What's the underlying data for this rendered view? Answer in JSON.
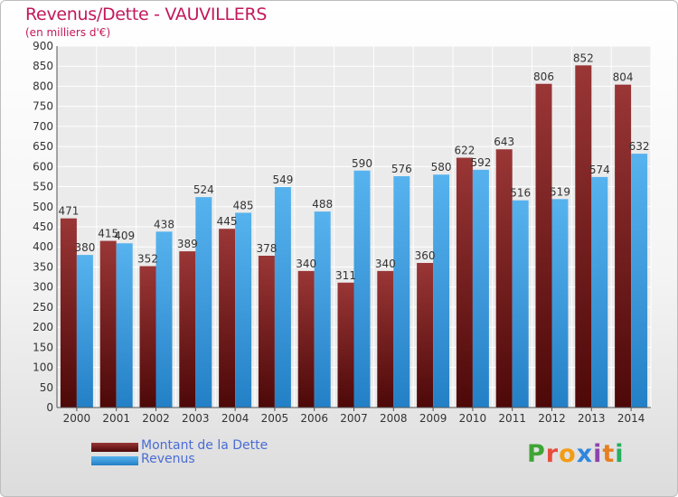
{
  "title": "Revenus/Dette - VAUVILLERS",
  "subtitle": "(en milliers d'€)",
  "logo": {
    "text": "Proxiti",
    "letters": [
      {
        "ch": "P",
        "color": "#3fa535"
      },
      {
        "ch": "r",
        "color": "#e74c3c"
      },
      {
        "ch": "o",
        "color": "#f39c12"
      },
      {
        "ch": "x",
        "color": "#2e86de"
      },
      {
        "ch": "i",
        "color": "#8e44ad"
      },
      {
        "ch": "t",
        "color": "#e67e22"
      },
      {
        "ch": "i",
        "color": "#27ae60"
      }
    ]
  },
  "chart_data": {
    "type": "bar",
    "categories": [
      "2000",
      "2001",
      "2002",
      "2003",
      "2004",
      "2005",
      "2006",
      "2007",
      "2008",
      "2009",
      "2010",
      "2011",
      "2012",
      "2013",
      "2014"
    ],
    "series": [
      {
        "name": "Montant de la Dette",
        "color": "#7a1a1a",
        "values": [
          471,
          415,
          352,
          389,
          445,
          378,
          340,
          311,
          340,
          360,
          622,
          643,
          806,
          852,
          804
        ]
      },
      {
        "name": "Revenus",
        "color": "#3a9be0",
        "values": [
          380,
          409,
          438,
          524,
          485,
          549,
          488,
          590,
          576,
          580,
          592,
          516,
          519,
          574,
          632
        ]
      }
    ],
    "ylim": [
      0,
      900
    ],
    "yticks": [
      0,
      50,
      100,
      150,
      200,
      250,
      300,
      350,
      400,
      450,
      500,
      550,
      600,
      650,
      700,
      750,
      800,
      850,
      900
    ],
    "grid": true,
    "legend_position": "bottom-left"
  }
}
